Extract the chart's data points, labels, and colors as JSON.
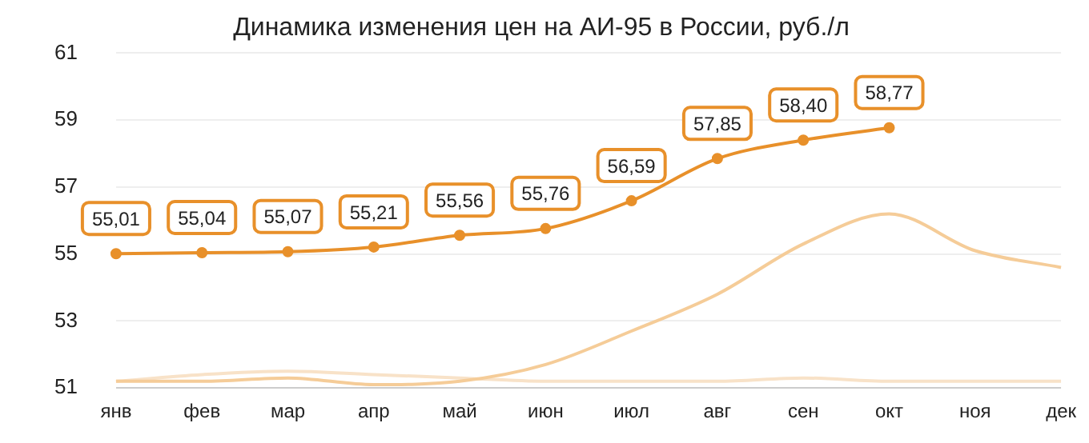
{
  "chart_data": {
    "type": "line",
    "title": "Динамика изменения цен на АИ-95 в России, руб./л",
    "categories": [
      "янв",
      "фев",
      "мар",
      "апр",
      "май",
      "июн",
      "июл",
      "авг",
      "сен",
      "окт",
      "ноя",
      "дек"
    ],
    "series": [
      {
        "color": "#e8902a",
        "values": [
          55.01,
          55.04,
          55.07,
          55.21,
          55.56,
          55.76,
          56.59,
          57.85,
          58.4,
          58.77,
          null,
          null
        ],
        "value_labels": [
          "55,01",
          "55,04",
          "55,07",
          "55,21",
          "55,56",
          "55,76",
          "56,59",
          "57,85",
          "58,40",
          "58,77",
          null,
          null
        ],
        "marker": "circle"
      },
      {
        "color": "#f5cc98",
        "values": [
          51.2,
          51.2,
          51.3,
          51.1,
          51.2,
          51.7,
          52.7,
          53.8,
          55.3,
          56.2,
          55.1,
          54.6
        ],
        "marker": "none"
      },
      {
        "color": "#f8e2c8",
        "values": [
          51.2,
          51.4,
          51.5,
          51.4,
          51.3,
          51.2,
          51.2,
          51.2,
          51.3,
          51.2,
          51.2,
          51.2
        ],
        "marker": "none"
      }
    ],
    "ylim": [
      51,
      61
    ],
    "yticks": [
      51,
      53,
      55,
      57,
      59,
      61
    ],
    "grid": "y",
    "legend": false
  }
}
